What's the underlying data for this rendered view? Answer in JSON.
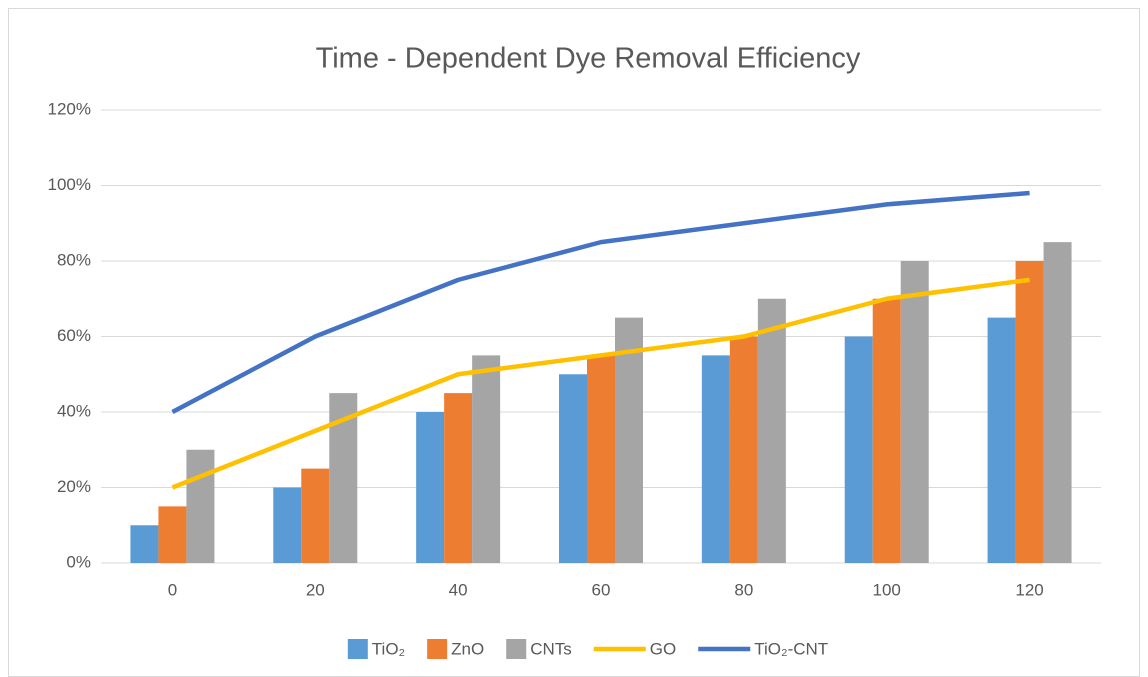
{
  "chart_data": {
    "type": "bar",
    "title": "Time - Dependent Dye Removal Efficiency",
    "categories": [
      "0",
      "20",
      "40",
      "60",
      "80",
      "100",
      "120"
    ],
    "series": [
      {
        "name": "TiO₂",
        "type": "bar",
        "color": "#5b9bd5",
        "values": [
          10,
          20,
          40,
          50,
          55,
          60,
          65
        ]
      },
      {
        "name": "ZnO",
        "type": "bar",
        "color": "#ed7d31",
        "values": [
          15,
          25,
          45,
          55,
          60,
          70,
          80
        ]
      },
      {
        "name": "CNTs",
        "type": "bar",
        "color": "#a5a5a5",
        "values": [
          30,
          45,
          55,
          65,
          70,
          80,
          85
        ]
      },
      {
        "name": "GO",
        "type": "line",
        "color": "#ffc000",
        "values": [
          20,
          35,
          50,
          55,
          60,
          70,
          75
        ]
      },
      {
        "name": "TiO₂-CNT",
        "type": "line",
        "color": "#4472c4",
        "values": [
          40,
          60,
          75,
          85,
          90,
          95,
          98
        ]
      }
    ],
    "ylim": [
      0,
      120
    ],
    "yticks": [
      {
        "value": 0,
        "label": "0%"
      },
      {
        "value": 20,
        "label": "20%"
      },
      {
        "value": 40,
        "label": "40%"
      },
      {
        "value": 60,
        "label": "60%"
      },
      {
        "value": 80,
        "label": "80%"
      },
      {
        "value": 100,
        "label": "100%"
      },
      {
        "value": 120,
        "label": "120%"
      }
    ],
    "grid": true,
    "legend": "bottom"
  }
}
